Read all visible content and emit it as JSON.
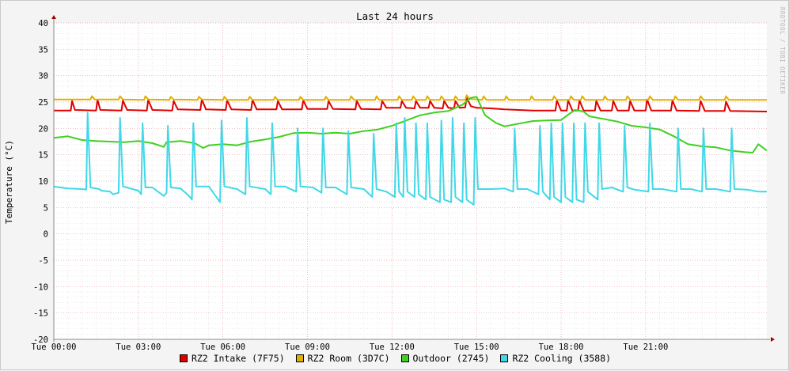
{
  "watermark": "RRDTOOL / TOBI OETIKER",
  "chart_data": {
    "type": "line",
    "title": "Last 24 hours",
    "ylabel": "Temperature (°C)",
    "xlabel": "",
    "ylim": [
      -20,
      40
    ],
    "y_ticks": [
      40,
      35,
      30,
      25,
      20,
      15,
      10,
      5,
      0,
      -5,
      -10,
      -15,
      -20
    ],
    "x_range_hours": [
      0,
      25.3
    ],
    "x_ticks": [
      {
        "h": 0,
        "label": "Tue 00:00"
      },
      {
        "h": 3,
        "label": "Tue 03:00"
      },
      {
        "h": 6,
        "label": "Tue 06:00"
      },
      {
        "h": 9,
        "label": "Tue 09:00"
      },
      {
        "h": 12,
        "label": "Tue 12:00"
      },
      {
        "h": 15,
        "label": "Tue 15:00"
      },
      {
        "h": 18,
        "label": "Tue 18:00"
      },
      {
        "h": 21,
        "label": "Tue 21:00"
      }
    ],
    "grid": true,
    "legend_position": "bottom",
    "series": [
      {
        "name": "RZ2 Intake (7F75)",
        "color": "#e00000",
        "x": [
          0,
          0.6,
          0.65,
          0.75,
          1.5,
          1.55,
          1.65,
          2.4,
          2.45,
          2.6,
          3.3,
          3.35,
          3.5,
          4.2,
          4.25,
          4.4,
          5.2,
          5.25,
          5.4,
          6.1,
          6.15,
          6.3,
          7.0,
          7.05,
          7.2,
          7.9,
          7.95,
          8.1,
          8.8,
          8.85,
          9.0,
          9.7,
          9.75,
          9.9,
          10.7,
          10.75,
          10.9,
          11.6,
          11.65,
          11.8,
          12.3,
          12.35,
          12.5,
          12.8,
          12.85,
          13.0,
          13.3,
          13.35,
          13.5,
          13.8,
          13.85,
          14.0,
          14.2,
          14.25,
          14.4,
          14.6,
          14.65,
          14.8,
          15.0,
          15.5,
          16.0,
          16.5,
          17.0,
          17.5,
          17.8,
          17.85,
          18.0,
          18.2,
          18.25,
          18.4,
          18.6,
          18.65,
          18.8,
          19.2,
          19.25,
          19.4,
          19.8,
          19.85,
          20.0,
          20.4,
          20.45,
          20.6,
          21.0,
          21.05,
          21.2,
          21.9,
          21.95,
          22.1,
          22.9,
          22.95,
          23.1,
          23.8,
          23.85,
          24.0,
          25.3
        ],
        "y": [
          23.4,
          23.4,
          25.2,
          23.5,
          23.4,
          25.4,
          23.5,
          23.4,
          25.3,
          23.5,
          23.4,
          25.4,
          23.5,
          23.4,
          25.2,
          23.6,
          23.5,
          25.5,
          23.6,
          23.5,
          25.3,
          23.6,
          23.5,
          25.4,
          23.6,
          23.6,
          25.2,
          23.6,
          23.6,
          25.3,
          23.7,
          23.7,
          25.2,
          23.7,
          23.6,
          25.2,
          23.7,
          23.6,
          25.2,
          23.9,
          23.9,
          25.2,
          23.9,
          23.8,
          25.2,
          23.9,
          23.9,
          25.2,
          23.9,
          23.8,
          25.2,
          23.9,
          23.8,
          25.2,
          23.9,
          24.0,
          25.8,
          24.2,
          23.9,
          23.8,
          23.6,
          23.5,
          23.4,
          23.4,
          23.4,
          25.3,
          23.4,
          23.4,
          25.3,
          23.4,
          23.4,
          25.3,
          23.4,
          23.4,
          25.2,
          23.4,
          23.4,
          25.2,
          23.4,
          23.4,
          25.2,
          23.4,
          23.4,
          25.5,
          23.4,
          23.4,
          25.3,
          23.4,
          23.3,
          25.2,
          23.3,
          23.3,
          25.1,
          23.3,
          23.2
        ]
      },
      {
        "name": "RZ2 Room (3D7C)",
        "color": "#e0b000",
        "x": [
          0,
          1.3,
          1.35,
          1.45,
          2.3,
          2.35,
          2.45,
          3.2,
          3.25,
          3.35,
          4.1,
          4.15,
          4.25,
          5.1,
          5.15,
          5.25,
          6.0,
          6.05,
          6.15,
          6.9,
          6.95,
          7.05,
          7.8,
          7.85,
          7.95,
          8.7,
          8.75,
          8.85,
          9.6,
          9.65,
          9.75,
          10.5,
          10.55,
          10.65,
          11.4,
          11.45,
          11.55,
          12.2,
          12.25,
          12.35,
          12.7,
          12.75,
          12.85,
          13.2,
          13.25,
          13.35,
          13.7,
          13.75,
          13.85,
          14.2,
          14.25,
          14.35,
          14.6,
          14.65,
          14.75,
          15.2,
          15.25,
          15.35,
          16.0,
          16.05,
          16.15,
          16.9,
          16.95,
          17.05,
          17.7,
          17.75,
          17.85,
          18.3,
          18.35,
          18.45,
          18.7,
          18.75,
          18.85,
          19.5,
          19.55,
          19.65,
          20.3,
          20.35,
          20.45,
          21.1,
          21.15,
          21.25,
          22.0,
          22.05,
          22.15,
          22.9,
          22.95,
          23.05,
          23.8,
          23.85,
          23.95,
          25.3
        ],
        "y": [
          25.5,
          25.5,
          26.1,
          25.5,
          25.5,
          26.1,
          25.5,
          25.4,
          26.1,
          25.5,
          25.4,
          26.0,
          25.5,
          25.4,
          26.0,
          25.5,
          25.4,
          26.0,
          25.4,
          25.4,
          26.0,
          25.4,
          25.4,
          26.0,
          25.4,
          25.4,
          26.0,
          25.4,
          25.4,
          26.0,
          25.4,
          25.4,
          26.1,
          25.4,
          25.4,
          26.1,
          25.4,
          25.4,
          26.1,
          25.4,
          25.4,
          26.1,
          25.4,
          25.4,
          26.1,
          25.4,
          25.4,
          26.1,
          25.4,
          25.4,
          26.1,
          25.4,
          25.4,
          26.3,
          25.6,
          25.4,
          26.1,
          25.4,
          25.4,
          26.1,
          25.4,
          25.4,
          26.1,
          25.4,
          25.4,
          26.1,
          25.4,
          25.4,
          26.1,
          25.4,
          25.4,
          26.1,
          25.4,
          25.4,
          26.1,
          25.4,
          25.4,
          26.1,
          25.4,
          25.4,
          26.1,
          25.4,
          25.4,
          26.1,
          25.4,
          25.4,
          26.1,
          25.4,
          25.4,
          26.1,
          25.4,
          25.4
        ]
      },
      {
        "name": "Outdoor (2745)",
        "color": "#40d020",
        "x": [
          0,
          0.5,
          1.0,
          1.5,
          2.0,
          2.5,
          3.0,
          3.5,
          3.9,
          4.0,
          4.5,
          5.0,
          5.3,
          5.5,
          6.0,
          6.5,
          7.0,
          7.5,
          8.0,
          8.5,
          9.0,
          9.5,
          10.0,
          10.5,
          11.0,
          11.5,
          12.0,
          12.5,
          13.0,
          13.5,
          14.0,
          14.5,
          14.8,
          15.0,
          15.3,
          15.7,
          16.0,
          16.5,
          17.0,
          17.5,
          18.0,
          18.3,
          18.5,
          18.8,
          19.0,
          19.5,
          20.0,
          20.5,
          21.0,
          21.5,
          22.0,
          22.5,
          23.0,
          23.5,
          24.0,
          24.5,
          24.8,
          25.0,
          25.3
        ],
        "y": [
          18.2,
          18.5,
          17.8,
          17.6,
          17.5,
          17.4,
          17.6,
          17.2,
          16.5,
          17.4,
          17.6,
          17.2,
          16.3,
          16.8,
          17.0,
          16.8,
          17.5,
          17.9,
          18.4,
          19.1,
          19.2,
          19.0,
          19.2,
          19.0,
          19.5,
          19.8,
          20.5,
          21.5,
          22.5,
          23.0,
          23.3,
          24.5,
          25.8,
          26.0,
          22.5,
          21.0,
          20.4,
          20.9,
          21.4,
          21.5,
          21.6,
          22.8,
          23.5,
          23.2,
          22.3,
          21.8,
          21.3,
          20.5,
          20.2,
          19.8,
          18.5,
          17.0,
          16.6,
          16.4,
          15.8,
          15.5,
          15.4,
          17.0,
          15.8
        ]
      },
      {
        "name": "RZ2 Cooling (3588)",
        "color": "#40d8e8",
        "x": [
          0,
          0.5,
          1.0,
          1.15,
          1.2,
          1.3,
          1.6,
          1.7,
          2.0,
          2.1,
          2.3,
          2.35,
          2.45,
          2.8,
          3.0,
          3.1,
          3.15,
          3.25,
          3.5,
          3.9,
          4.0,
          4.05,
          4.15,
          4.5,
          4.8,
          4.9,
          4.95,
          5.05,
          5.5,
          5.9,
          5.95,
          6.05,
          6.5,
          6.8,
          6.85,
          6.95,
          7.5,
          7.7,
          7.75,
          7.85,
          8.2,
          8.6,
          8.65,
          8.75,
          9.2,
          9.5,
          9.55,
          9.65,
          10.0,
          10.4,
          10.45,
          10.55,
          11.0,
          11.3,
          11.35,
          11.45,
          11.8,
          12.1,
          12.15,
          12.25,
          12.4,
          12.45,
          12.55,
          12.8,
          12.85,
          12.95,
          13.2,
          13.25,
          13.35,
          13.7,
          13.75,
          13.85,
          14.1,
          14.15,
          14.25,
          14.5,
          14.55,
          14.65,
          14.9,
          14.95,
          15.05,
          15.5,
          16.0,
          16.3,
          16.35,
          16.45,
          16.8,
          17.2,
          17.25,
          17.35,
          17.6,
          17.65,
          17.75,
          18.0,
          18.05,
          18.15,
          18.4,
          18.45,
          18.55,
          18.8,
          18.85,
          18.95,
          19.3,
          19.35,
          19.45,
          19.8,
          20.2,
          20.25,
          20.35,
          20.6,
          21.1,
          21.15,
          21.25,
          21.6,
          22.1,
          22.15,
          22.25,
          22.6,
          23.0,
          23.05,
          23.15,
          23.5,
          24.0,
          24.05,
          24.15,
          24.6,
          25.0,
          25.3
        ],
        "y": [
          9.0,
          8.6,
          8.5,
          8.4,
          23.0,
          8.8,
          8.5,
          8.2,
          8.0,
          7.5,
          7.8,
          22.0,
          9.0,
          8.5,
          8.2,
          7.5,
          21.0,
          8.8,
          8.8,
          7.2,
          7.8,
          20.5,
          8.8,
          8.6,
          7.2,
          6.5,
          21.0,
          9.0,
          9.0,
          6.0,
          21.5,
          9.0,
          8.5,
          7.5,
          22.0,
          9.0,
          8.5,
          7.5,
          21.0,
          9.0,
          9.0,
          8.0,
          20.0,
          9.0,
          8.8,
          7.8,
          20.0,
          8.8,
          8.8,
          7.5,
          19.5,
          8.8,
          8.5,
          7.0,
          19.0,
          8.5,
          8.0,
          7.0,
          21.0,
          8.0,
          7.0,
          22.0,
          8.0,
          7.0,
          21.0,
          7.5,
          6.5,
          21.0,
          7.0,
          6.0,
          21.5,
          6.5,
          6.0,
          22.0,
          7.0,
          6.0,
          21.0,
          6.5,
          5.5,
          22.0,
          8.5,
          8.5,
          8.6,
          8.0,
          20.0,
          8.5,
          8.5,
          7.5,
          20.5,
          8.0,
          6.5,
          21.0,
          7.0,
          6.0,
          21.0,
          7.0,
          6.0,
          21.0,
          6.5,
          6.0,
          21.0,
          8.0,
          6.5,
          21.0,
          8.5,
          8.8,
          8.0,
          20.5,
          8.8,
          8.4,
          8.0,
          21.0,
          8.5,
          8.5,
          8.0,
          20.0,
          8.5,
          8.5,
          8.0,
          20.0,
          8.5,
          8.5,
          8.0,
          20.0,
          8.5,
          8.4,
          8.0,
          8.0
        ]
      }
    ]
  }
}
